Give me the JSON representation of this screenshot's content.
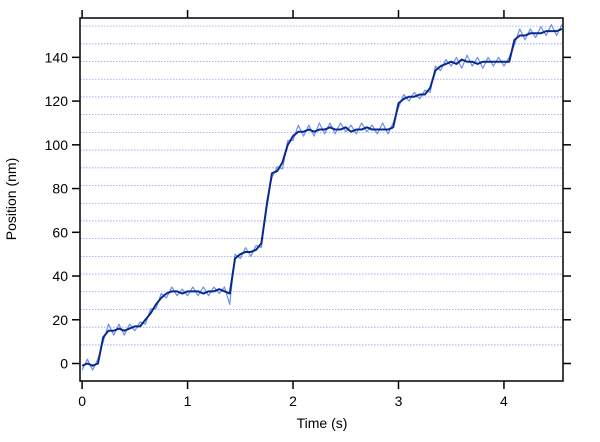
{
  "chart_data": {
    "type": "line",
    "x_label": "Time (s)",
    "y_label": "Position (nm)",
    "x": [
      0,
      0.05,
      0.1,
      0.15,
      0.2,
      0.25,
      0.3,
      0.35,
      0.4,
      0.45,
      0.5,
      0.55,
      0.6,
      0.65,
      0.7,
      0.75,
      0.8,
      0.85,
      0.9,
      0.95,
      1.0,
      1.05,
      1.1,
      1.15,
      1.2,
      1.25,
      1.3,
      1.35,
      1.4,
      1.45,
      1.5,
      1.55,
      1.6,
      1.65,
      1.7,
      1.75,
      1.8,
      1.85,
      1.9,
      1.95,
      2.0,
      2.05,
      2.1,
      2.15,
      2.2,
      2.25,
      2.3,
      2.35,
      2.4,
      2.45,
      2.5,
      2.55,
      2.6,
      2.65,
      2.7,
      2.75,
      2.8,
      2.85,
      2.9,
      2.95,
      3.0,
      3.05,
      3.1,
      3.15,
      3.2,
      3.25,
      3.3,
      3.35,
      3.4,
      3.45,
      3.5,
      3.55,
      3.6,
      3.65,
      3.7,
      3.75,
      3.8,
      3.85,
      3.9,
      3.95,
      4.0,
      4.05,
      4.1,
      4.15,
      4.2,
      4.25,
      4.3,
      4.35,
      4.4,
      4.45,
      4.5,
      4.55
    ],
    "series": [
      {
        "color": "#6f8ff0",
        "width": 1.2,
        "values": [
          -3,
          2,
          -3,
          2,
          10,
          18,
          13,
          18,
          13,
          18,
          15,
          19,
          18,
          25,
          25,
          32,
          30,
          35,
          31,
          34,
          31,
          35,
          31,
          35,
          31,
          35,
          32,
          35,
          27,
          50,
          48,
          53,
          49,
          54,
          53,
          74,
          85,
          90,
          89,
          102,
          102,
          109,
          104,
          109,
          104,
          110,
          105,
          110,
          105,
          110,
          106,
          109,
          105,
          110,
          106,
          109,
          105,
          110,
          105,
          110,
          117,
          123,
          120,
          124,
          121,
          125,
          124,
          136,
          134,
          139,
          136,
          140,
          135,
          141,
          136,
          140,
          135,
          140,
          136,
          140,
          136,
          140,
          146,
          153,
          148,
          153,
          149,
          154,
          150,
          155,
          150,
          155
        ]
      },
      {
        "color": "#0a2a8a",
        "width": 2,
        "values": [
          -1,
          0,
          -1,
          0,
          12,
          15,
          15,
          16,
          15,
          16,
          17,
          17,
          20,
          23,
          27,
          30,
          32,
          33,
          33,
          32,
          33,
          33,
          33,
          32,
          33,
          33,
          34,
          33,
          32,
          48,
          50,
          51,
          51,
          52,
          55,
          72,
          87,
          88,
          92,
          100,
          104,
          106,
          106,
          107,
          106,
          107,
          107,
          108,
          107,
          107,
          108,
          106,
          107,
          107,
          108,
          107,
          107,
          107,
          107,
          108,
          119,
          121,
          122,
          122,
          123,
          123,
          126,
          134,
          136,
          137,
          138,
          137,
          139,
          138,
          138,
          137,
          138,
          138,
          138,
          138,
          138,
          138,
          148,
          150,
          150,
          151,
          151,
          151,
          152,
          152,
          152,
          153
        ]
      }
    ],
    "xlim": [
      -0.02,
      4.56
    ],
    "ylim": [
      -8,
      158
    ],
    "xticks": [
      0,
      1,
      2,
      3,
      4
    ],
    "yticks": [
      0,
      20,
      40,
      60,
      80,
      100,
      120,
      140
    ],
    "grid_color": "#8f9cf0",
    "grid_values": [
      8.5,
      16.6,
      24.7,
      32.8,
      40.9,
      49.0,
      57.1,
      65.2,
      73.3,
      81.4,
      89.5,
      97.6,
      105.7,
      113.8,
      121.9,
      130.0,
      138.1,
      146.2,
      154.3
    ]
  }
}
